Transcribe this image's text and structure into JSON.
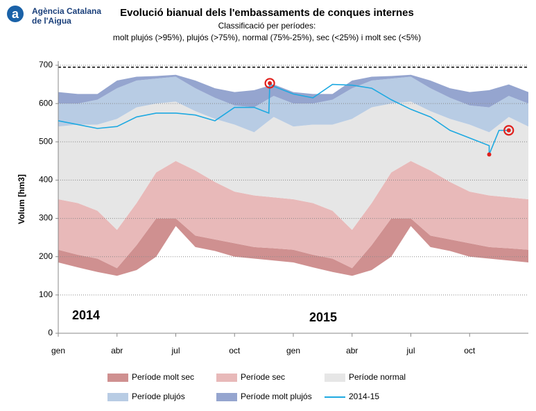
{
  "header": {
    "org_line1": "Agència Catalana",
    "org_line2": "de l'Aigua"
  },
  "chart_data": {
    "type": "band-line",
    "title": "Evolució bianual dels l'embassaments de conques internes",
    "subtitle_line1": "Classificació per períodes:",
    "subtitle_line2": "molt plujós (>95%), plujós (>75%), normal (75%-25%), sec (<25%) i molt sec (<5%)",
    "y_label": "Volum [hm3]",
    "annotations": [
      "2014",
      "2015"
    ],
    "xlim": [
      0,
      24
    ],
    "xticks": [
      {
        "value": 0,
        "label": "gen"
      },
      {
        "value": 3,
        "label": "abr"
      },
      {
        "value": 6,
        "label": "jul"
      },
      {
        "value": 9,
        "label": "oct"
      },
      {
        "value": 12,
        "label": "gen"
      },
      {
        "value": 15,
        "label": "abr"
      },
      {
        "value": 18,
        "label": "jul"
      },
      {
        "value": 21,
        "label": "oct"
      }
    ],
    "ylim": [
      0,
      700
    ],
    "yticks": [
      0,
      100,
      200,
      300,
      400,
      500,
      600,
      700
    ],
    "grid": true,
    "capacity_line": 695,
    "x": [
      0,
      1,
      2,
      3,
      4,
      5,
      6,
      7,
      8,
      9,
      10,
      11,
      12,
      13,
      14,
      15,
      16,
      17,
      18,
      19,
      20,
      21,
      22,
      23,
      24
    ],
    "bands": [
      {
        "name": "Període molt sec",
        "color": "#cf9090",
        "lower": [
          185,
          172,
          160,
          150,
          165,
          200,
          280,
          225,
          215,
          200,
          195,
          190,
          185,
          172,
          160,
          150,
          165,
          200,
          280,
          225,
          215,
          200,
          195,
          190,
          185
        ],
        "upper": [
          218,
          205,
          195,
          170,
          230,
          300,
          300,
          255,
          245,
          235,
          225,
          222,
          218,
          205,
          195,
          170,
          230,
          300,
          300,
          255,
          245,
          235,
          225,
          222,
          218
        ]
      },
      {
        "name": "Període sec",
        "color": "#e8b9b9",
        "lower": [
          218,
          205,
          195,
          170,
          230,
          300,
          300,
          255,
          245,
          235,
          225,
          222,
          218,
          205,
          195,
          170,
          230,
          300,
          300,
          255,
          245,
          235,
          225,
          222,
          218
        ],
        "upper": [
          350,
          340,
          320,
          270,
          340,
          420,
          450,
          425,
          395,
          370,
          360,
          355,
          350,
          340,
          320,
          270,
          340,
          420,
          450,
          425,
          395,
          370,
          360,
          355,
          350
        ]
      },
      {
        "name": "Període normal",
        "color": "#e6e6e6",
        "lower": [
          350,
          340,
          320,
          270,
          340,
          420,
          450,
          425,
          395,
          370,
          360,
          355,
          350,
          340,
          320,
          270,
          340,
          420,
          450,
          425,
          395,
          370,
          360,
          355,
          350
        ],
        "upper": [
          540,
          545,
          545,
          560,
          590,
          600,
          605,
          580,
          560,
          545,
          525,
          565,
          540,
          545,
          545,
          560,
          590,
          600,
          605,
          580,
          560,
          545,
          525,
          565,
          540
        ]
      },
      {
        "name": "Període plujós",
        "color": "#b8cce4",
        "lower": [
          540,
          545,
          545,
          560,
          590,
          600,
          605,
          580,
          560,
          545,
          525,
          565,
          540,
          545,
          545,
          560,
          590,
          600,
          605,
          580,
          560,
          545,
          525,
          565,
          540
        ],
        "upper": [
          600,
          600,
          610,
          640,
          660,
          665,
          670,
          640,
          615,
          595,
          590,
          620,
          600,
          600,
          610,
          640,
          660,
          665,
          670,
          640,
          615,
          595,
          590,
          620,
          600
        ]
      },
      {
        "name": "Període molt plujós",
        "color": "#95a5cf",
        "lower": [
          600,
          600,
          610,
          640,
          660,
          665,
          670,
          640,
          615,
          595,
          590,
          620,
          600,
          600,
          610,
          640,
          660,
          665,
          670,
          640,
          615,
          595,
          590,
          620,
          600
        ],
        "upper": [
          630,
          625,
          625,
          660,
          670,
          672,
          675,
          660,
          640,
          630,
          635,
          650,
          630,
          625,
          625,
          660,
          670,
          672,
          675,
          660,
          640,
          630,
          635,
          650,
          630
        ]
      }
    ],
    "line": {
      "name": "2014-15",
      "color": "#1ea9e1",
      "x": [
        0,
        1,
        2,
        3,
        4,
        5,
        6,
        7,
        8,
        9,
        10,
        10.75,
        10.8,
        11,
        12,
        13,
        14,
        15,
        16,
        17,
        18,
        19,
        20,
        21,
        22,
        22,
        22.5,
        23
      ],
      "values": [
        555,
        545,
        535,
        540,
        565,
        575,
        575,
        570,
        555,
        590,
        590,
        575,
        653,
        645,
        625,
        615,
        650,
        648,
        640,
        610,
        585,
        565,
        530,
        510,
        490,
        467,
        530,
        530
      ]
    },
    "highlights": [
      {
        "x": 10.8,
        "value": 653,
        "circled": true
      },
      {
        "x": 22,
        "value": 467,
        "circled": false
      },
      {
        "x": 23,
        "value": 530,
        "circled": true
      }
    ]
  }
}
